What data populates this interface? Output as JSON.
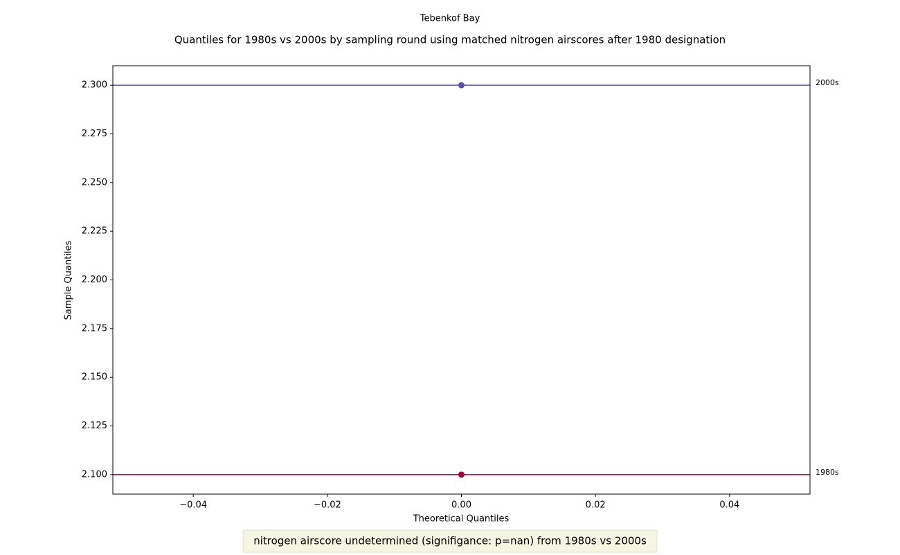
{
  "chart_data": {
    "type": "scatter",
    "suptitle": "Tebenkof Bay",
    "title": "Quantiles for 1980s vs 2000s by sampling round using matched nitrogen airscores after 1980 designation",
    "xlabel": "Theoretical Quantiles",
    "ylabel": "Sample Quantiles",
    "annotation": "nitrogen airscore undetermined (signifigance: p=nan) from 1980s vs 2000s",
    "xlim": [
      -0.052,
      0.052
    ],
    "ylim": [
      2.09,
      2.31
    ],
    "xticks": [
      {
        "value": -0.04,
        "label": "−0.04"
      },
      {
        "value": -0.02,
        "label": "−0.02"
      },
      {
        "value": 0,
        "label": "0.00"
      },
      {
        "value": 0.02,
        "label": "0.02"
      },
      {
        "value": 0.04,
        "label": "0.04"
      }
    ],
    "yticks": [
      {
        "value": 2.1,
        "label": "2.100"
      },
      {
        "value": 2.125,
        "label": "2.125"
      },
      {
        "value": 2.15,
        "label": "2.150"
      },
      {
        "value": 2.175,
        "label": "2.175"
      },
      {
        "value": 2.2,
        "label": "2.200"
      },
      {
        "value": 2.225,
        "label": "2.225"
      },
      {
        "value": 2.25,
        "label": "2.250"
      },
      {
        "value": 2.275,
        "label": "2.275"
      },
      {
        "value": 2.3,
        "label": "2.300"
      }
    ],
    "grid": false,
    "series": [
      {
        "name": "2000s",
        "color": "#5e4fa2",
        "x": [
          0
        ],
        "values": [
          2.3
        ]
      },
      {
        "name": "1980s",
        "color": "#9e0142",
        "x": [
          0
        ],
        "values": [
          2.1
        ]
      }
    ]
  }
}
